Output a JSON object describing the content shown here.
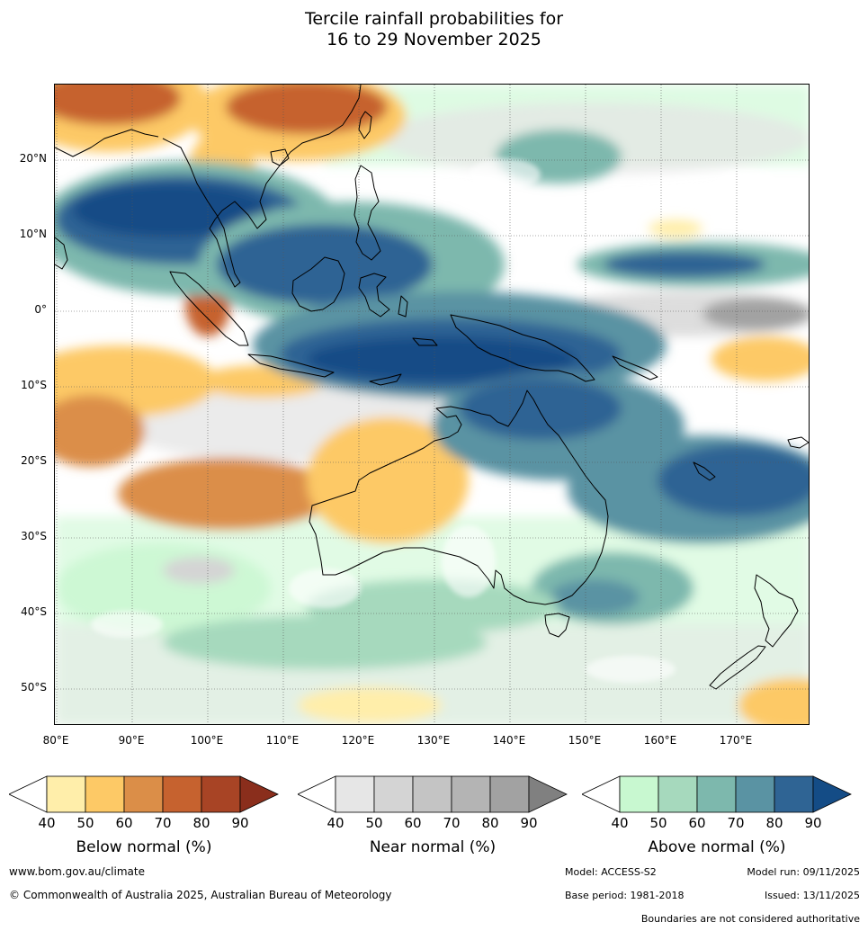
{
  "title": {
    "line1": "Tercile rainfall probabilities for",
    "line2": "16 to 29 November 2025"
  },
  "map": {
    "lat_labels": [
      "20°N",
      "10°N",
      "0°",
      "10°S",
      "20°S",
      "30°S",
      "40°S",
      "50°S"
    ],
    "lon_labels": [
      "80°E",
      "90°E",
      "100°E",
      "110°E",
      "120°E",
      "130°E",
      "140°E",
      "150°E",
      "160°E",
      "170°E"
    ]
  },
  "legends": [
    {
      "title": "Below normal (%)",
      "ticks": [
        "40",
        "50",
        "60",
        "70",
        "80",
        "90"
      ],
      "colors": [
        "#ffeeaa",
        "#fdc966",
        "#db8e48",
        "#c6622f",
        "#a84425",
        "#8a2e1c"
      ]
    },
    {
      "title": "Near normal (%)",
      "ticks": [
        "40",
        "50",
        "60",
        "70",
        "80",
        "90"
      ],
      "colors": [
        "#e6e6e6",
        "#d4d4d4",
        "#c4c4c4",
        "#b4b4b4",
        "#a2a2a2",
        "#808080"
      ]
    },
    {
      "title": "Above normal (%)",
      "ticks": [
        "40",
        "50",
        "60",
        "70",
        "80",
        "90"
      ],
      "colors": [
        "#c8f8d0",
        "#a6d9bd",
        "#7db8ad",
        "#5a93a3",
        "#2f6494",
        "#144c86"
      ]
    }
  ],
  "footer": {
    "website": "www.bom.gov.au/climate",
    "copyright": "© Commonwealth of Australia 2025, Australian Bureau of Meteorology",
    "model": "Model: ACCESS-S2",
    "model_run": "Model run: 09/11/2025",
    "base_period": "Base period: 1981-2018",
    "issued": "Issued: 13/11/2025",
    "disclaimer": "Boundaries are not considered authoritative"
  }
}
